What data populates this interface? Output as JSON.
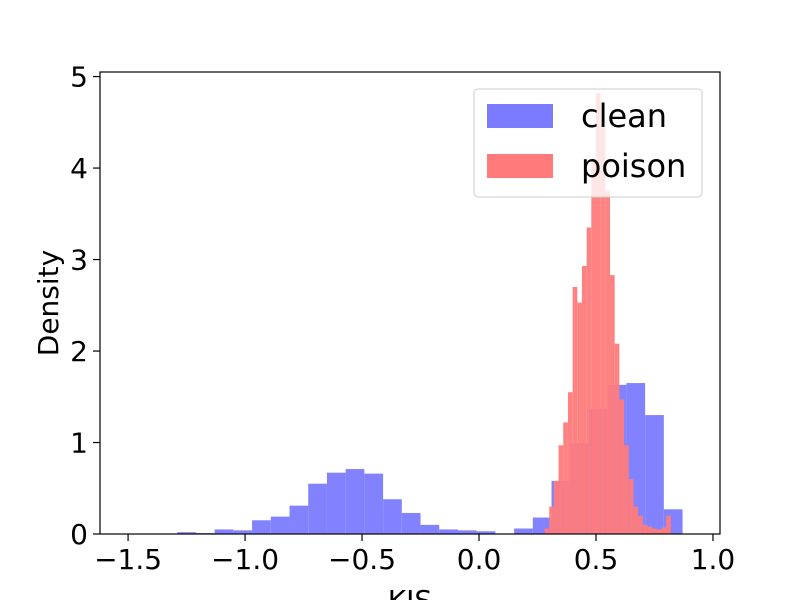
{
  "chart_data": {
    "type": "histogram",
    "xlabel": "KIS",
    "ylabel": "Density",
    "xlim": [
      -1.62,
      1.03
    ],
    "ylim": [
      0,
      5.05
    ],
    "xticks": [
      -1.5,
      -1.0,
      -0.5,
      0.0,
      0.5,
      1.0
    ],
    "xtick_labels": [
      "−1.5",
      "−1.0",
      "−0.5",
      "0.0",
      "0.5",
      "1.0"
    ],
    "yticks": [
      0,
      1,
      2,
      3,
      4,
      5
    ],
    "ytick_labels": [
      "0",
      "1",
      "2",
      "3",
      "4",
      "5"
    ],
    "grid": false,
    "legend": "upper-right",
    "series": [
      {
        "name": "clean",
        "color": "#7b7bff",
        "bin_edges": [
          -1.29,
          -1.21,
          -1.13,
          -1.05,
          -0.97,
          -0.89,
          -0.81,
          -0.73,
          -0.65,
          -0.57,
          -0.49,
          -0.41,
          -0.33,
          -0.25,
          -0.17,
          -0.09,
          -0.01,
          0.07,
          0.15,
          0.23,
          0.31,
          0.39,
          0.47,
          0.55,
          0.63,
          0.71,
          0.79,
          0.87
        ],
        "densities": [
          0.02,
          0.01,
          0.05,
          0.04,
          0.15,
          0.19,
          0.31,
          0.55,
          0.67,
          0.71,
          0.66,
          0.38,
          0.23,
          0.1,
          0.05,
          0.04,
          0.03,
          0.0,
          0.06,
          0.18,
          0.58,
          0.99,
          1.37,
          1.63,
          1.65,
          1.3,
          0.27
        ]
      },
      {
        "name": "poison",
        "color": "#ff7b7b",
        "bin_edges": [
          0.28,
          0.3,
          0.32,
          0.34,
          0.36,
          0.38,
          0.4,
          0.42,
          0.44,
          0.46,
          0.48,
          0.5,
          0.52,
          0.54,
          0.56,
          0.58,
          0.6,
          0.62,
          0.64,
          0.66,
          0.68,
          0.7,
          0.72,
          0.74,
          0.76,
          0.78,
          0.8,
          0.82
        ],
        "densities": [
          0.06,
          0.3,
          0.58,
          0.97,
          1.22,
          1.55,
          2.7,
          2.53,
          2.93,
          3.35,
          4.08,
          4.82,
          4.47,
          3.75,
          2.83,
          2.08,
          1.47,
          0.97,
          0.6,
          0.3,
          0.2,
          0.1,
          0.08,
          0.06,
          0.05,
          0.07,
          0.2
        ]
      }
    ]
  }
}
